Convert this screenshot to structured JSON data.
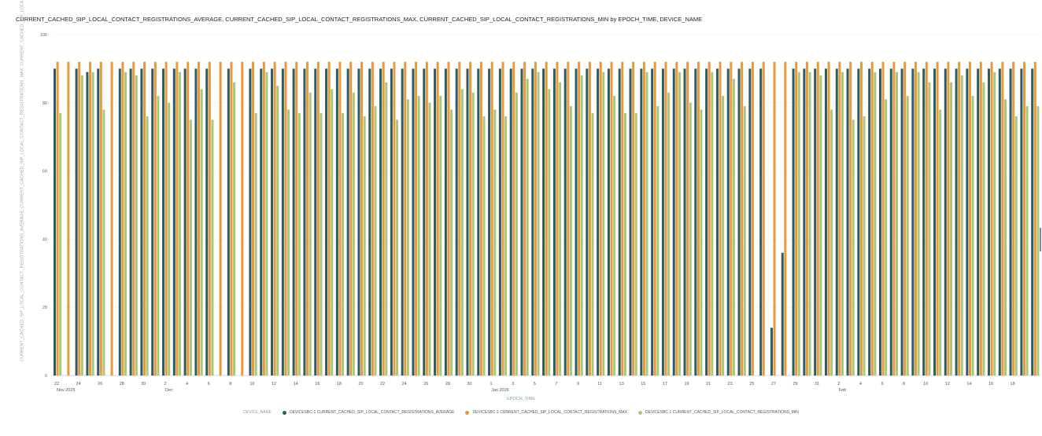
{
  "chart_data": {
    "type": "bar",
    "title": "CURRENT_CACHED_SIP_LOCAL_CONTACT_REGISTRATIONS_AVERAGE, CURRENT_CACHED_SIP_LOCAL_CONTACT_REGISTRATIONS_MAX, CURRENT_CACHED_SIP_LOCAL_CONTACT_REGISTRATIONS_MIN by EPOCH_TIME, DEVICE_NAME",
    "xlabel": "EPOCH_TIME",
    "ylabel": "CURRENT_CACHED_SIP_LOCAL_CONTACT_REGISTRATIONS_AVERAGE, CURRENT_CACHED_SIP_LOCAL_CONTACT_REGISTRATIONS_MAX, CURRENT_CACHED_SIP_LOCAL_CONTACT_REGISTRATIONS_MIN",
    "ylim": [
      0,
      100000
    ],
    "y_ticks": [
      {
        "value": 0,
        "label": "0"
      },
      {
        "value": 20000,
        "label": "20"
      },
      {
        "value": 40000,
        "label": "40"
      },
      {
        "value": 60000,
        "label": "60"
      },
      {
        "value": 80000,
        "label": "80"
      },
      {
        "value": 100000,
        "label": "100"
      }
    ],
    "x_ticks": [
      {
        "index": 0,
        "label": "22",
        "sub": "Nov 2025"
      },
      {
        "index": 2,
        "label": "24"
      },
      {
        "index": 4,
        "label": "26"
      },
      {
        "index": 6,
        "label": "28"
      },
      {
        "index": 8,
        "label": "30"
      },
      {
        "index": 10,
        "label": "2",
        "sub": "Dec"
      },
      {
        "index": 12,
        "label": "4"
      },
      {
        "index": 14,
        "label": "6"
      },
      {
        "index": 16,
        "label": "8"
      },
      {
        "index": 18,
        "label": "10"
      },
      {
        "index": 20,
        "label": "12"
      },
      {
        "index": 22,
        "label": "14"
      },
      {
        "index": 24,
        "label": "16"
      },
      {
        "index": 26,
        "label": "18"
      },
      {
        "index": 28,
        "label": "20"
      },
      {
        "index": 30,
        "label": "22"
      },
      {
        "index": 32,
        "label": "24"
      },
      {
        "index": 34,
        "label": "26"
      },
      {
        "index": 36,
        "label": "28"
      },
      {
        "index": 38,
        "label": "30"
      },
      {
        "index": 40,
        "label": "1",
        "sub": "Jan 2026"
      },
      {
        "index": 42,
        "label": "3"
      },
      {
        "index": 44,
        "label": "5"
      },
      {
        "index": 46,
        "label": "7"
      },
      {
        "index": 48,
        "label": "9"
      },
      {
        "index": 50,
        "label": "11"
      },
      {
        "index": 52,
        "label": "13"
      },
      {
        "index": 54,
        "label": "15"
      },
      {
        "index": 56,
        "label": "17"
      },
      {
        "index": 58,
        "label": "19"
      },
      {
        "index": 60,
        "label": "21"
      },
      {
        "index": 62,
        "label": "23"
      },
      {
        "index": 64,
        "label": "25"
      },
      {
        "index": 66,
        "label": "27"
      },
      {
        "index": 68,
        "label": "29"
      },
      {
        "index": 70,
        "label": "31"
      },
      {
        "index": 72,
        "label": "2",
        "sub": "Feb"
      },
      {
        "index": 74,
        "label": "4"
      },
      {
        "index": 76,
        "label": "6"
      },
      {
        "index": 78,
        "label": "8"
      },
      {
        "index": 80,
        "label": "10"
      },
      {
        "index": 82,
        "label": "12"
      },
      {
        "index": 84,
        "label": "14"
      },
      {
        "index": 86,
        "label": "16"
      },
      {
        "index": 88,
        "label": "18"
      }
    ],
    "x_start": "2025-11-22",
    "series": [
      {
        "name": "DEVICESBC-1 CURRENT_CACHED_SIP_LOCAL_CONTACT_REGISTRATIONS_AVERAGE",
        "color": "#2c5d63",
        "values": [
          90,
          0,
          90,
          89,
          90,
          0,
          90,
          90,
          90,
          90,
          90,
          90,
          90,
          90,
          90,
          0,
          90,
          0,
          90,
          90,
          90,
          90,
          90,
          90,
          90,
          90,
          90,
          90,
          90,
          90,
          90,
          90,
          90,
          90,
          90,
          90,
          90,
          90,
          90,
          90,
          90,
          90,
          90,
          90,
          90,
          90,
          90,
          90,
          90,
          90,
          90,
          90,
          90,
          90,
          90,
          90,
          90,
          90,
          90,
          90,
          90,
          90,
          90,
          90,
          90,
          90,
          14,
          36,
          90,
          90,
          90,
          90,
          90,
          90,
          90,
          90,
          90,
          90,
          90,
          90,
          90,
          90,
          90,
          90,
          90,
          90,
          90,
          90,
          90,
          90,
          90
        ]
      },
      {
        "name": "DEVICESBC-1 CURRENT_CACHED_SIP_LOCAL_CONTACT_REGISTRATIONS_MAX",
        "color": "#e8993a",
        "values": [
          92,
          92,
          92,
          92,
          92,
          92,
          92,
          92,
          92,
          92,
          92,
          92,
          92,
          92,
          92,
          92,
          92,
          92,
          92,
          92,
          92,
          92,
          92,
          92,
          92,
          92,
          92,
          92,
          92,
          92,
          92,
          92,
          92,
          92,
          92,
          92,
          92,
          92,
          92,
          92,
          92,
          92,
          92,
          92,
          92,
          92,
          92,
          92,
          92,
          92,
          92,
          92,
          92,
          92,
          92,
          92,
          92,
          92,
          92,
          92,
          92,
          92,
          92,
          92,
          92,
          92,
          92,
          92,
          92,
          92,
          92,
          92,
          92,
          92,
          92,
          92,
          92,
          92,
          92,
          92,
          92,
          92,
          92,
          92,
          92,
          92,
          92,
          92,
          92,
          92,
          92
        ]
      },
      {
        "name": "DEVICESBC-1 CURRENT_CACHED_SIP_LOCAL_CONTACT_REGISTRATIONS_MIN",
        "color": "#a9c77a",
        "values": [
          77,
          0,
          88,
          89,
          78,
          0,
          89,
          88,
          76,
          82,
          80,
          89,
          75,
          84,
          75,
          0,
          86,
          0,
          77,
          89,
          85,
          78,
          77,
          83,
          77,
          84,
          77,
          83,
          76,
          79,
          86,
          75,
          81,
          82,
          80,
          82,
          78,
          84,
          83,
          76,
          78,
          76,
          83,
          87,
          89,
          84,
          86,
          79,
          88,
          77,
          89,
          82,
          77,
          77,
          89,
          79,
          83,
          89,
          80,
          78,
          89,
          82,
          87,
          79,
          0,
          0,
          0,
          0,
          89,
          89,
          88,
          78,
          89,
          75,
          76,
          89,
          81,
          89,
          82,
          89,
          86,
          78,
          86,
          88,
          82,
          86,
          89,
          81,
          76,
          79,
          79
        ]
      }
    ],
    "legend": {
      "title": "DEVICE_NAME",
      "position": "bottom"
    }
  }
}
